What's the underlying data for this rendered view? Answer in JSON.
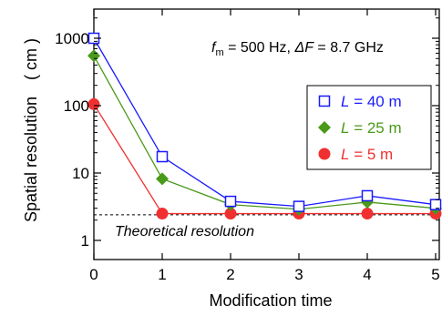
{
  "chart_data": {
    "type": "line",
    "xlabel": "Modification time",
    "ylabel": "Spatial resolution　( cm )",
    "y_scale": "log",
    "xlim": [
      0,
      5
    ],
    "ylim": [
      1,
      2000
    ],
    "x_ticks": [
      "0",
      "1",
      "2",
      "3",
      "4",
      "5"
    ],
    "y_ticks": [
      "1",
      "10",
      "100",
      "1000"
    ],
    "x": [
      0,
      1,
      2,
      3,
      4,
      5
    ],
    "series": [
      {
        "name": "L = 40 m",
        "label_var": "L",
        "label_value": " = 40 m",
        "color": "#1a1aff",
        "marker": "square-open",
        "values": [
          1000,
          17.5,
          3.8,
          3.2,
          4.6,
          3.4
        ]
      },
      {
        "name": "L = 25 m",
        "label_var": "L",
        "label_value": " = 25 m",
        "color": "#4a9a1a",
        "marker": "diamond",
        "values": [
          550,
          8.2,
          3.4,
          2.9,
          3.7,
          3.0
        ]
      },
      {
        "name": "L = 5 m",
        "label_var": "L",
        "label_value": " = 5 m",
        "color": "#f03030",
        "marker": "circle",
        "values": [
          105,
          2.5,
          2.5,
          2.5,
          2.5,
          2.5
        ]
      }
    ],
    "reference_line": {
      "value": 2.4,
      "label": "Theoretical resolution",
      "style": "dashed"
    },
    "annotation": {
      "fm_symbol": "f",
      "fm_sub": "m",
      "fm_value": " = 500 Hz, ",
      "dF_symbol": "ΔF",
      "dF_value": " = 8.7 GHz"
    },
    "legend_position": "right-middle",
    "grid": false
  }
}
